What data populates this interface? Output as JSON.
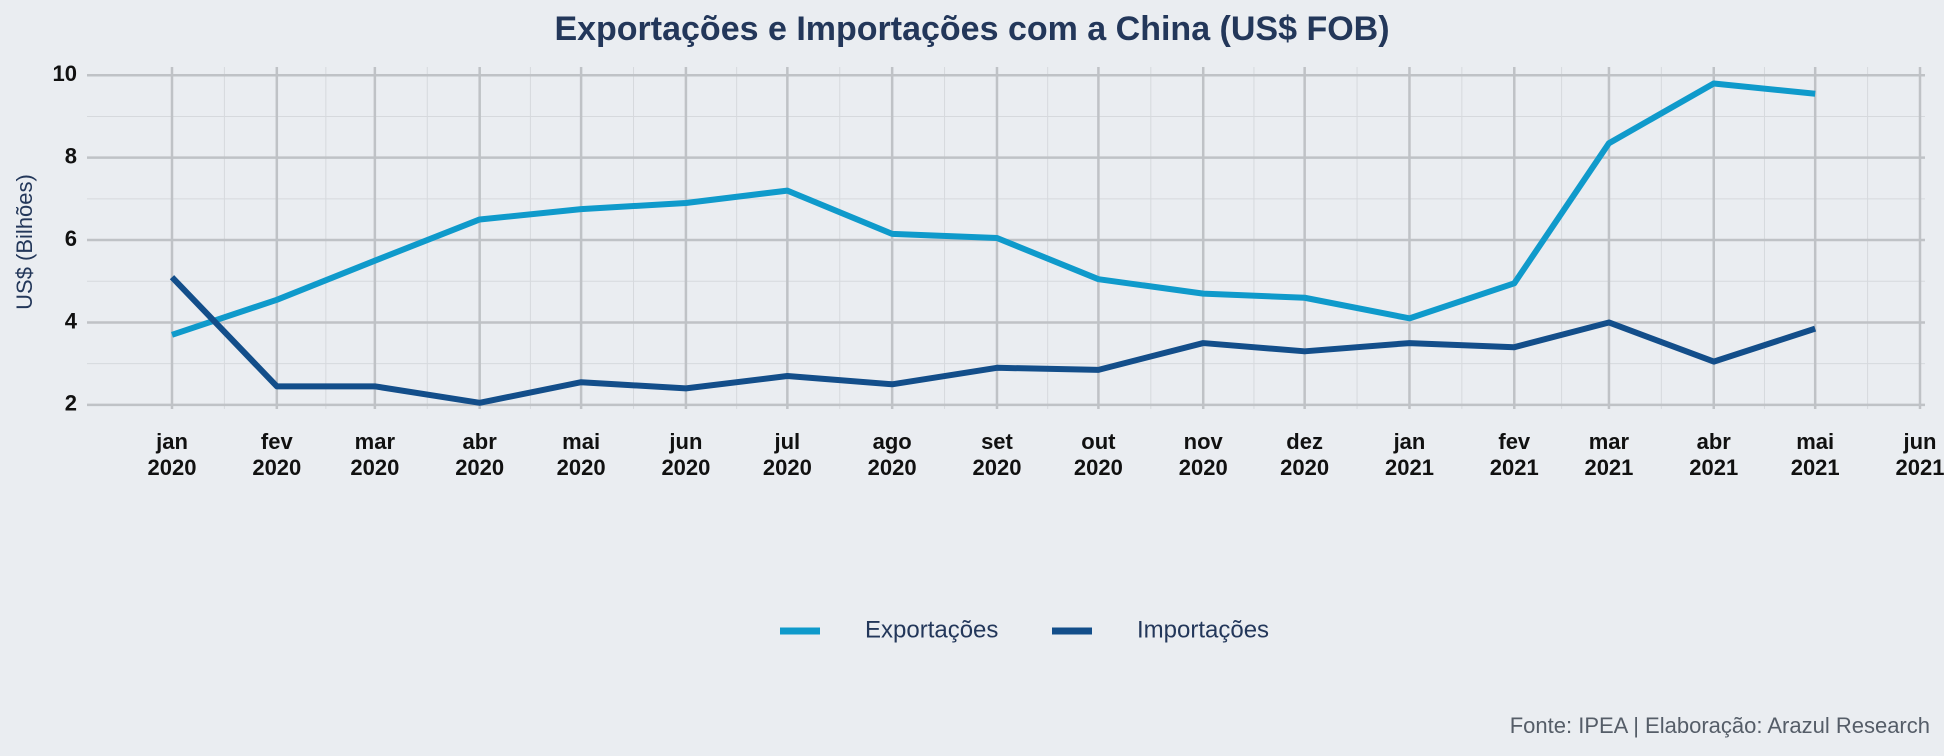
{
  "chart_data": {
    "type": "line",
    "title": "Exportações e Importações com a China (US$ FOB)",
    "y_label": "US$ (Bilhões)",
    "source": "Fonte: IPEA | Elaboração: Arazul Research",
    "x": [
      "2020-01",
      "2020-02",
      "2020-03",
      "2020-04",
      "2020-05",
      "2020-06",
      "2020-07",
      "2020-08",
      "2020-09",
      "2020-10",
      "2020-11",
      "2020-12",
      "2021-01",
      "2021-02",
      "2021-03",
      "2021-04",
      "2021-05"
    ],
    "series": [
      {
        "name": "Exportações",
        "color": "#0f9acb",
        "values": [
          3.7,
          4.55,
          5.5,
          6.5,
          6.75,
          6.9,
          7.2,
          6.15,
          6.05,
          5.05,
          4.7,
          4.6,
          4.1,
          4.95,
          8.35,
          9.8,
          9.55
        ]
      },
      {
        "name": "Importações",
        "color": "#134e8a",
        "values": [
          5.1,
          2.45,
          2.45,
          2.05,
          2.55,
          2.4,
          2.7,
          2.5,
          2.9,
          2.85,
          3.5,
          3.3,
          3.5,
          3.4,
          4.0,
          3.05,
          3.85
        ]
      }
    ],
    "xlim": [
      "2020-01",
      "2021-06"
    ],
    "xticks": [
      {
        "value": "2020-01",
        "label": "jan 2020"
      },
      {
        "value": "2020-02",
        "label": "fev 2020"
      },
      {
        "value": "2020-03",
        "label": "mar 2020"
      },
      {
        "value": "2020-04",
        "label": "abr 2020"
      },
      {
        "value": "2020-05",
        "label": "mai 2020"
      },
      {
        "value": "2020-06",
        "label": "jun 2020"
      },
      {
        "value": "2020-07",
        "label": "jul 2020"
      },
      {
        "value": "2020-08",
        "label": "ago 2020"
      },
      {
        "value": "2020-09",
        "label": "set 2020"
      },
      {
        "value": "2020-10",
        "label": "out 2020"
      },
      {
        "value": "2020-11",
        "label": "nov 2020"
      },
      {
        "value": "2020-12",
        "label": "dez 2020"
      },
      {
        "value": "2021-01",
        "label": "jan 2021"
      },
      {
        "value": "2021-02",
        "label": "fev 2021"
      },
      {
        "value": "2021-03",
        "label": "mar 2021"
      },
      {
        "value": "2021-04",
        "label": "abr 2021"
      },
      {
        "value": "2021-05",
        "label": "mai 2021"
      },
      {
        "value": "2021-06",
        "label": "jun 2021"
      }
    ],
    "ylim": [
      1.9,
      10.2
    ],
    "yticks": [
      2,
      4,
      6,
      8,
      10
    ],
    "grid": true,
    "legend": "bottom"
  }
}
